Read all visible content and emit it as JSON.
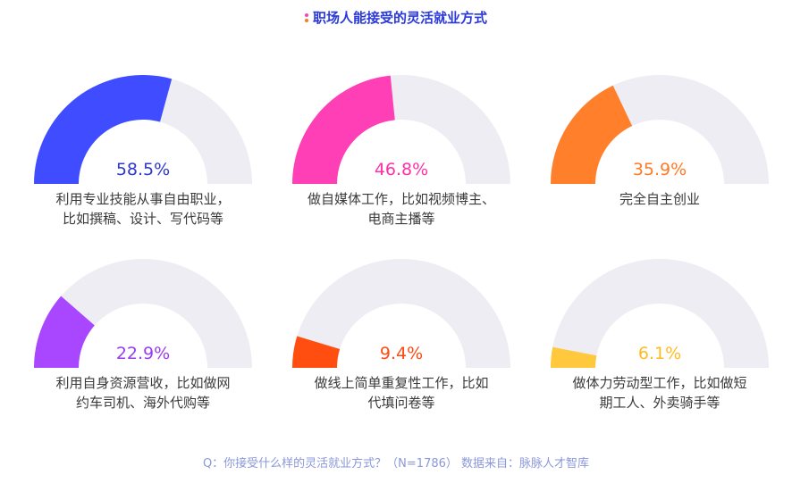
{
  "title": "职场人能接受的灵活就业方式",
  "footer": "Q：你接受什么样的灵活就业方式？（N=1786） 数据来自：脉脉人才智库",
  "track_color": "#ededf3",
  "chart_data": [
    {
      "type": "pie",
      "label": "利用专业技能从事自由职业，\n比如撰稿、设计、写代码等",
      "value": 58.5,
      "display": "58.5%",
      "color": "#3f4cff",
      "text_color": "#2d37c8"
    },
    {
      "type": "pie",
      "label": "做自媒体工作，比如视频博主、\n电商主播等",
      "value": 46.8,
      "display": "46.8%",
      "color": "#ff3fb5",
      "text_color": "#ff2fa8"
    },
    {
      "type": "pie",
      "label": "完全自主创业",
      "value": 35.9,
      "display": "35.9%",
      "color": "#ff7f2a",
      "text_color": "#ff7a22"
    },
    {
      "type": "pie",
      "label": "利用自身资源营收，比如做网\n约车司机、海外代购等",
      "value": 22.9,
      "display": "22.9%",
      "color": "#a946ff",
      "text_color": "#9a3cf0"
    },
    {
      "type": "pie",
      "label": "做线上简单重复性工作，比如\n代填问卷等",
      "value": 9.4,
      "display": "9.4%",
      "color": "#ff4e0f",
      "text_color": "#ff4a10"
    },
    {
      "type": "pie",
      "label": "做体力劳动型工作，比如做短\n期工人、外卖骑手等",
      "value": 6.1,
      "display": "6.1%",
      "color": "#ffc83d",
      "text_color": "#ffbb22"
    }
  ]
}
